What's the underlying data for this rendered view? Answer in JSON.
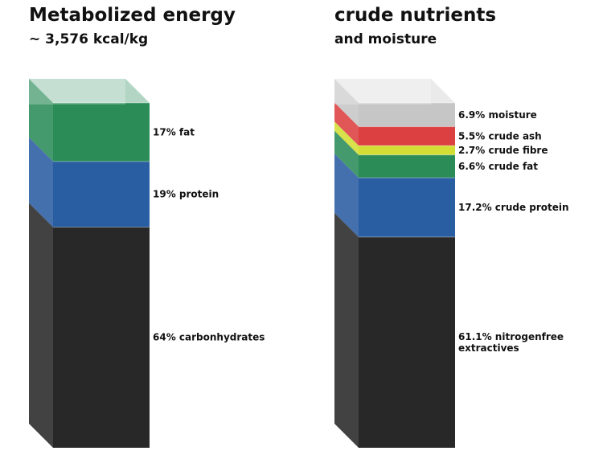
{
  "chart_data": [
    {
      "type": "stacked-bar-3d",
      "title": "Metabolized energy",
      "subtitle": "~ 3,576 kcal/kg",
      "unit": "%",
      "segments": [
        {
          "label": "17% fat",
          "value": 17,
          "color": "#2b8c58"
        },
        {
          "label": "19% protein",
          "value": 19,
          "color": "#2a5ea3"
        },
        {
          "label": "64% carbonhydrates",
          "value": 64,
          "color": "#282828"
        }
      ]
    },
    {
      "type": "stacked-bar-3d",
      "title": "crude nutrients",
      "subtitle": "and moisture",
      "unit": "%",
      "segments": [
        {
          "label": "6.9% moisture",
          "value": 6.9,
          "color": "#c6c6c6"
        },
        {
          "label": "5.5% crude ash",
          "value": 5.5,
          "color": "#dd4040"
        },
        {
          "label": "2.7% crude fibre",
          "value": 2.7,
          "color": "#d2de34"
        },
        {
          "label": "6.6% crude fat",
          "value": 6.6,
          "color": "#2b8c58"
        },
        {
          "label": "17.2% crude protein",
          "value": 17.2,
          "color": "#2a5ea3"
        },
        {
          "label": [
            "61.1% nitrogenfree",
            "extractives"
          ],
          "value": 61.1,
          "color": "#282828"
        }
      ]
    }
  ]
}
